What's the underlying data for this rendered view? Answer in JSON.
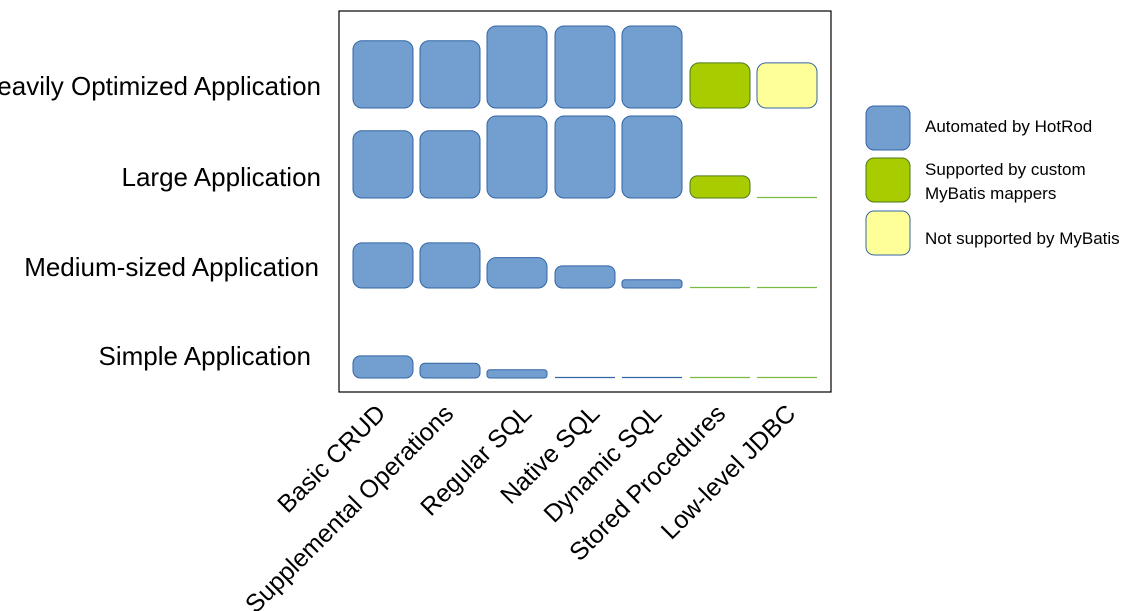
{
  "chart_data": {
    "type": "heatmap",
    "rows": [
      "Heavily Optimized Application",
      "Large Application",
      "Medium-sized Application",
      "Simple Application"
    ],
    "columns": [
      "Basic CRUD",
      "Supplemental Operations",
      "Regular SQL",
      "Native SQL",
      "Dynamic SQL",
      "Stored Procedures",
      "Low-level JDBC"
    ],
    "values": [
      [
        0.82,
        0.82,
        1.0,
        1.0,
        1.0,
        0.55,
        0.55
      ],
      [
        0.82,
        0.82,
        1.0,
        1.0,
        1.0,
        0.27,
        0.0
      ],
      [
        0.55,
        0.55,
        0.37,
        0.27,
        0.1,
        0.0,
        0.0
      ],
      [
        0.27,
        0.18,
        0.1,
        0.0,
        0.0,
        0.0,
        0.0
      ]
    ],
    "categories_by_column": [
      "automated",
      "automated",
      "automated",
      "automated",
      "automated",
      "custom",
      "unsupported"
    ],
    "legend": [
      {
        "key": "automated",
        "label_lines": [
          "Automated by HotRod"
        ],
        "color": "#729fcf"
      },
      {
        "key": "custom",
        "label_lines": [
          "Supported by custom",
          "MyBatis mappers"
        ],
        "color": "#a8cc00"
      },
      {
        "key": "unsupported",
        "label_lines": [
          "Not supported by MyBatis"
        ],
        "color": "#ffff99"
      }
    ],
    "colors": {
      "automated_fill": "#729fcf",
      "automated_stroke": "#3465a4",
      "custom_fill": "#a8cc00",
      "custom_stroke": "#4e7a1c",
      "unsupported_fill": "#ffff99",
      "unsupported_stroke": "#3465a4",
      "baseline": "#77bc41",
      "frame": "#000000"
    },
    "legend_position": "right",
    "grid": false
  }
}
